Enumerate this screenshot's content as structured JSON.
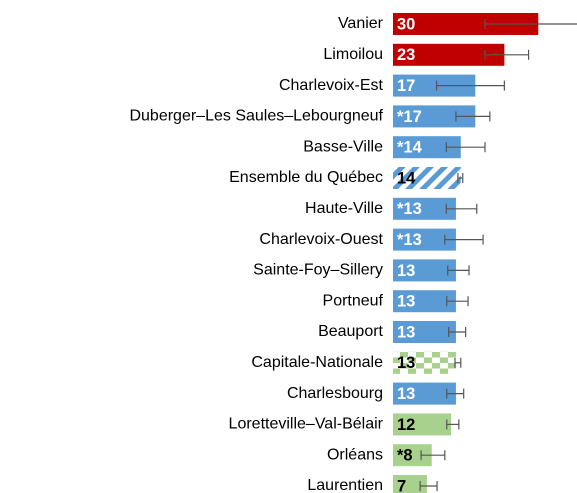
{
  "chart_data": {
    "type": "bar",
    "orientation": "horizontal",
    "categories": [
      "Vanier",
      "Limoilou",
      "Charlevoix-Est",
      "Duberger–Les Saules–Lebourgneuf",
      "Basse-Ville",
      "Ensemble du Québec",
      "Haute-Ville",
      "Charlevoix-Ouest",
      "Sainte-Foy–Sillery",
      "Portneuf",
      "Beauport",
      "Capitale-Nationale",
      "Charlesbourg",
      "Loretteville–Val-Bélair",
      "Orléans",
      "Laurentien"
    ],
    "values": [
      30,
      23,
      17,
      17,
      14,
      14,
      13,
      13,
      13,
      13,
      13,
      13,
      13,
      12,
      8,
      7
    ],
    "value_labels": [
      "30",
      "23",
      "17",
      "*17",
      "*14",
      "14",
      "*13",
      "*13",
      "13",
      "13",
      "13",
      "13",
      "13",
      "12",
      "*8",
      "7"
    ],
    "error_low": [
      19,
      19,
      9,
      13,
      11,
      13.4,
      11,
      10.7,
      11.3,
      11.1,
      11.5,
      12.8,
      11.1,
      11.1,
      5.8,
      5.6
    ],
    "error_high": [
      41,
      28,
      23,
      20,
      19,
      14.4,
      17.3,
      18.6,
      15.7,
      15.5,
      15,
      14,
      14.6,
      13.6,
      10.7,
      9.1
    ],
    "colors": [
      "#c00000",
      "#c00000",
      "#5b9bd5",
      "#5b9bd5",
      "#5b9bd5",
      "#5b9bd5",
      "#5b9bd5",
      "#5b9bd5",
      "#5b9bd5",
      "#5b9bd5",
      "#5b9bd5",
      "#a9d18e",
      "#5b9bd5",
      "#a9d18e",
      "#a9d18e",
      "#a9d18e"
    ],
    "patterns": [
      null,
      null,
      null,
      null,
      null,
      "hatch",
      null,
      null,
      null,
      null,
      null,
      "checker",
      null,
      null,
      null,
      null
    ],
    "value_label_colors": [
      "#ffffff",
      "#ffffff",
      "#ffffff",
      "#ffffff",
      "#ffffff",
      "#000000",
      "#ffffff",
      "#ffffff",
      "#ffffff",
      "#ffffff",
      "#ffffff",
      "#000000",
      "#ffffff",
      "#000000",
      "#000000",
      "#000000"
    ],
    "xlim": [
      0,
      38
    ]
  }
}
